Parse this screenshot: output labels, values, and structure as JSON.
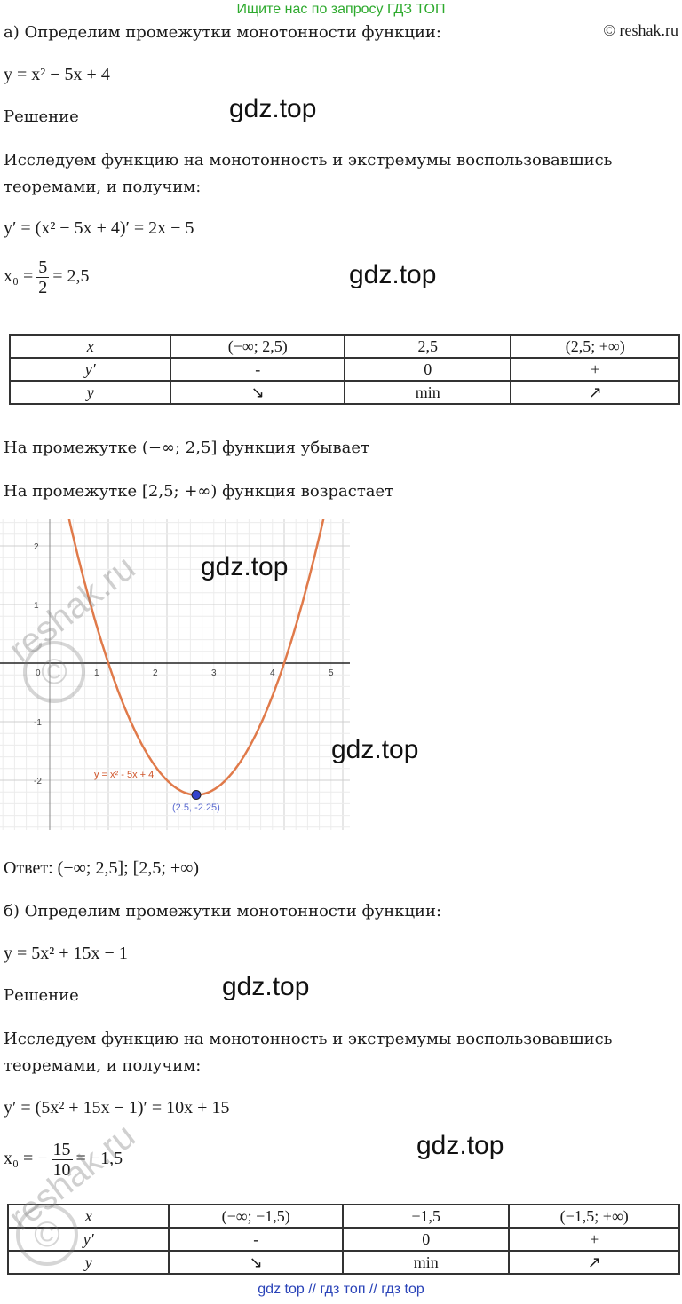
{
  "top_banner": "Ищите нас по запросу ГДЗ ТОП",
  "credit": "© reshak.ru",
  "watermark_gdz": "gdz.top",
  "watermark_reshak": "reshak.ru",
  "part_a": {
    "heading": "а) Определим промежутки монотонности функции:",
    "function": "y = x² − 5x + 4",
    "solution_label": "Решение",
    "intro_line1": "Исследуем функцию на монотонность и экстремумы воспользовавшись",
    "intro_line2": "теоремами, и получим:",
    "derivative": "y′ = (x² − 5x + 4)′ = 2x − 5",
    "x0_lhs": "x₀ =",
    "x0_num": "5",
    "x0_den": "2",
    "x0_rhs": "= 2,5",
    "table": [
      [
        "x",
        "(−∞; 2,5)",
        "2,5",
        "(2,5; +∞)"
      ],
      [
        "y′",
        "-",
        "0",
        "+"
      ],
      [
        "y",
        "↘",
        "min",
        "↗"
      ]
    ],
    "decreasing": "На промежутке (−∞; 2,5] функция убывает",
    "increasing": "На промежутке [2,5; +∞) функция возрастает",
    "answer": "Ответ: (−∞; 2,5];  [2,5; +∞)"
  },
  "graph": {
    "curve_label": "y = x² - 5x + 4",
    "point_label": "(2.5, -2.25)",
    "x_ticks": [
      "0",
      "1",
      "2",
      "3",
      "4",
      "5"
    ],
    "y_ticks": [
      "2",
      "1",
      "-1",
      "-2"
    ],
    "curve_color": "#e07a4a",
    "point_color": "#3344cc"
  },
  "part_b": {
    "heading": "б) Определим промежутки монотонности функции:",
    "function": "y = 5x² + 15x − 1",
    "solution_label": "Решение",
    "intro_line1": "Исследуем функцию на монотонность и экстремумы воспользовавшись",
    "intro_line2": "теоремами, и получим:",
    "derivative": "y′ = (5x² + 15x − 1)′ = 10x + 15",
    "x0_lhs": "x₀ = −",
    "x0_num": "15",
    "x0_den": "10",
    "x0_rhs": "= −1,5",
    "table": [
      [
        "x",
        "(−∞; −1,5)",
        "−1,5",
        "(−1,5; +∞)"
      ],
      [
        "y′",
        "-",
        "0",
        "+"
      ],
      [
        "y",
        "↘",
        "min",
        "↗"
      ]
    ]
  },
  "footer": "gdz top  //  гдз топ  //  гдз top"
}
